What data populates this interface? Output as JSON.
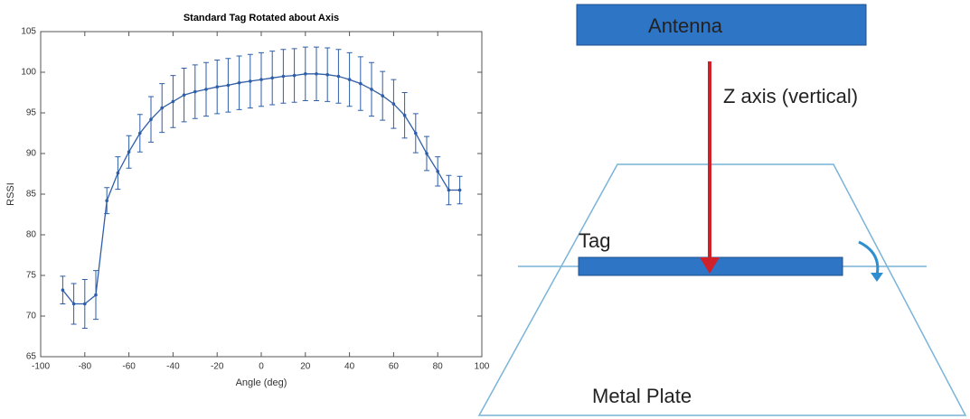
{
  "chart_data": {
    "type": "errorbar-line",
    "title": "Standard Tag Rotated about Axis",
    "x_label": "Angle (deg)",
    "y_label": "RSSI",
    "x": [
      -90,
      -85,
      -80,
      -75,
      -70,
      -65,
      -60,
      -55,
      -50,
      -45,
      -40,
      -35,
      -30,
      -25,
      -20,
      -15,
      -10,
      -5,
      0,
      5,
      10,
      15,
      20,
      25,
      30,
      35,
      40,
      45,
      50,
      55,
      60,
      65,
      70,
      75,
      80,
      85,
      90
    ],
    "series": [
      {
        "color": "#2f5ea8",
        "values": [
          73.2,
          71.5,
          71.5,
          72.6,
          84.2,
          87.6,
          90.2,
          92.5,
          94.2,
          95.6,
          96.4,
          97.2,
          97.6,
          97.9,
          98.2,
          98.4,
          98.7,
          98.9,
          99.1,
          99.3,
          99.5,
          99.6,
          99.8,
          99.8,
          99.7,
          99.5,
          99.1,
          98.6,
          97.9,
          97.1,
          96.1,
          94.7,
          92.5,
          90.0,
          87.8,
          85.5,
          85.5
        ],
        "errors": [
          1.7,
          2.5,
          3.0,
          3.0,
          1.6,
          2.0,
          2.0,
          2.3,
          2.8,
          3.0,
          3.2,
          3.3,
          3.3,
          3.3,
          3.3,
          3.3,
          3.3,
          3.3,
          3.3,
          3.3,
          3.3,
          3.3,
          3.3,
          3.3,
          3.3,
          3.3,
          3.3,
          3.3,
          3.3,
          3.0,
          3.0,
          2.8,
          2.4,
          2.1,
          1.8,
          1.8,
          1.7
        ]
      }
    ],
    "xlim": [
      -100,
      100
    ],
    "xticks": [
      -100,
      -80,
      -60,
      -40,
      -20,
      0,
      20,
      40,
      60,
      80,
      100
    ],
    "ylim": [
      65,
      105
    ],
    "yticks": [
      65,
      70,
      75,
      80,
      85,
      90,
      95,
      100,
      105
    ]
  },
  "diagram": {
    "antenna": "Antenna",
    "axis": "Z axis (vertical)",
    "tag": "Tag",
    "plate": "Metal Plate"
  }
}
